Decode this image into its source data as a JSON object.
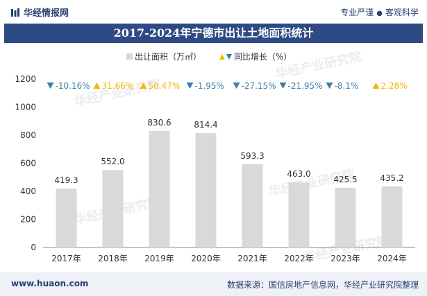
{
  "header": {
    "brand": "华经情报网",
    "slogan_left": "专业严谨",
    "slogan_right": "客观科学"
  },
  "title": "2017-2024年宁德市出让土地面积统计",
  "footer": {
    "site": "www.huaon.com",
    "source": "数据来源：国信房地产信息网，华经产业研究院整理"
  },
  "watermark": "华经产业研究院",
  "chart_data": {
    "type": "bar",
    "categories": [
      "2017年",
      "2018年",
      "2019年",
      "2020年",
      "2021年",
      "2022年",
      "2023年",
      "2024年"
    ],
    "series": [
      {
        "name": "出让面积（万㎡）",
        "values": [
          419.3,
          552.0,
          830.6,
          814.4,
          593.3,
          463.0,
          425.5,
          435.2
        ],
        "labels": [
          "419.3",
          "552.0",
          "830.6",
          "814.4",
          "593.3",
          "463.0",
          "425.5",
          "435.2"
        ]
      },
      {
        "name": "同比增长（%）",
        "values": [
          -10.16,
          31.66,
          50.47,
          -1.95,
          -27.15,
          -21.95,
          -8.1,
          2.28
        ],
        "labels": [
          "-10.16%",
          "31.66%",
          "50.47%",
          "-1.95%",
          "-27.15%",
          "-21.95%",
          "-8.1%",
          "2.28%"
        ]
      }
    ],
    "yticks": [
      0,
      200,
      400,
      600,
      800,
      1000,
      1200
    ],
    "ylim": [
      0,
      1200
    ],
    "legend_position": "top-center",
    "grid": false,
    "colors": {
      "bar": "#d9d9d9",
      "up": "#f5b800",
      "down": "#3d7ea6"
    }
  }
}
